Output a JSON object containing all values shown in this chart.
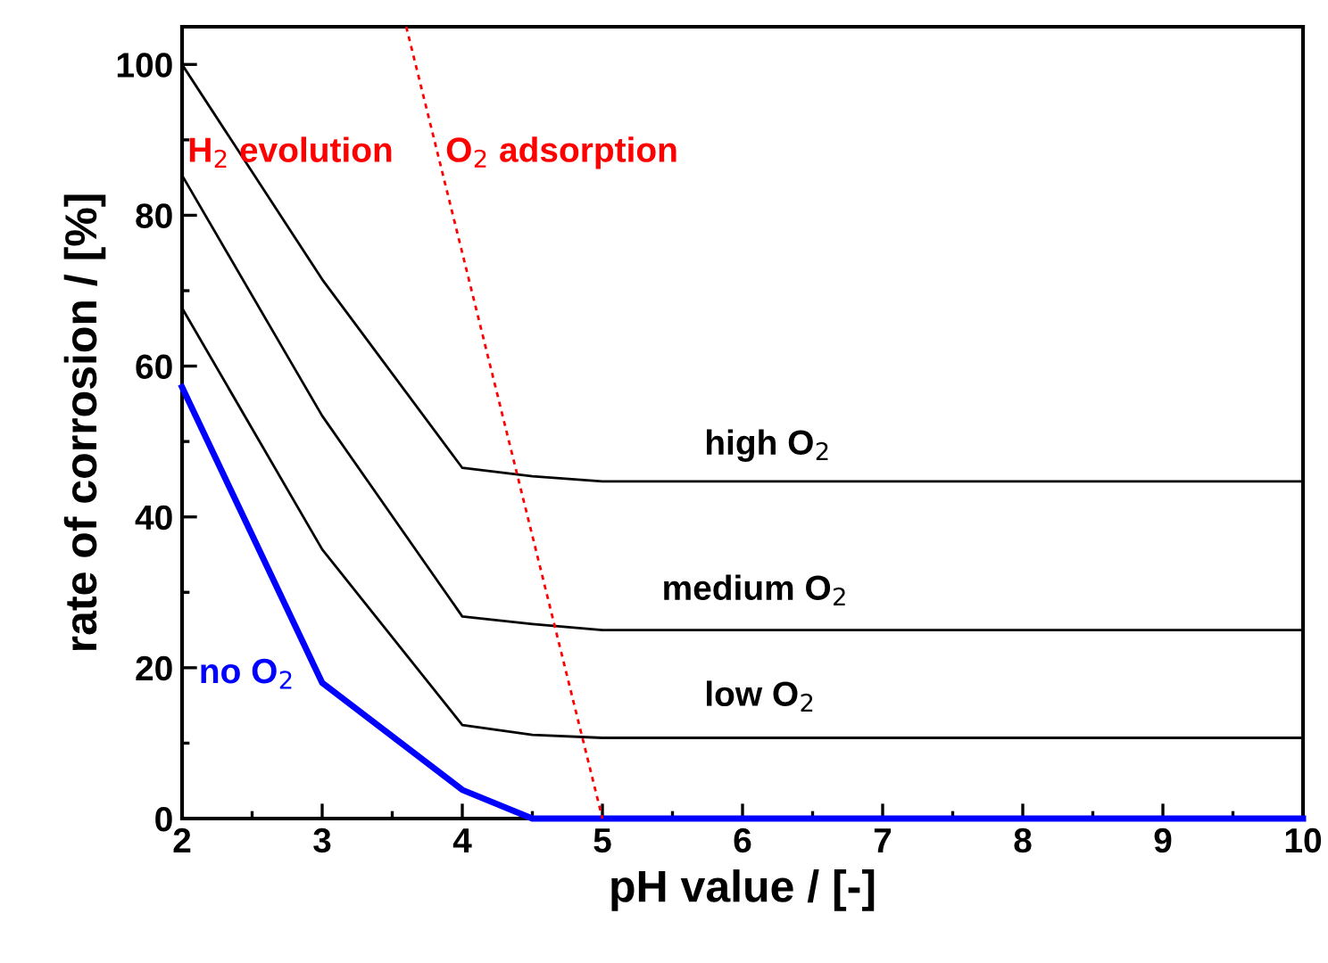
{
  "chart_data": {
    "type": "line",
    "xlabel": "pH value / [-]",
    "ylabel": "rate of corrosion / [%]",
    "xlim": [
      2,
      10
    ],
    "ylim": [
      0,
      105
    ],
    "xticks": [
      2,
      3,
      4,
      5,
      6,
      7,
      8,
      9,
      10
    ],
    "yticks": [
      0,
      20,
      40,
      60,
      80,
      100
    ],
    "grid": false,
    "legend": false,
    "x": [
      2,
      3,
      4,
      4.5,
      5,
      10
    ],
    "series": [
      {
        "name": "high O$_{2}$",
        "color": "#000000",
        "values": [
          100,
          71.5,
          46.5,
          45.4,
          44.7,
          44.7
        ]
      },
      {
        "name": "medium O$_{2}$",
        "color": "#000000",
        "values": [
          85.3,
          53.4,
          26.8,
          25.8,
          25.0,
          25.0
        ]
      },
      {
        "name": "low O$_{2}$",
        "color": "#000000",
        "values": [
          67.7,
          35.7,
          12.4,
          11.1,
          10.7,
          10.7
        ]
      },
      {
        "name": "no O$_{2}$",
        "color": "#0000ff",
        "values": [
          57.2,
          18.0,
          3.8,
          0,
          0,
          0
        ]
      },
      {
        "color": "#ff0000",
        "x": [
          3.6,
          5
        ],
        "values": [
          105,
          0
        ],
        "line_style": "dotted"
      }
    ],
    "annotations": [
      "H$_{2}$ evolution",
      "O$_{2}$ adsorption"
    ]
  }
}
